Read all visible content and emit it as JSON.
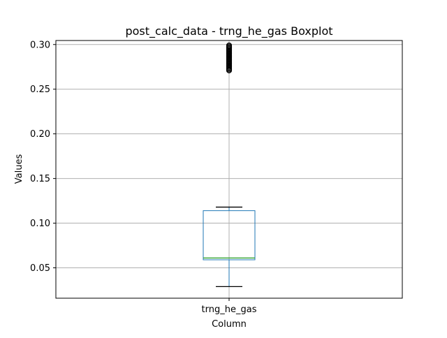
{
  "chart_data": {
    "type": "boxplot",
    "title": "post_calc_data - trng_he_gas Boxplot",
    "xlabel": "Column",
    "ylabel": "Values",
    "categories": [
      "trng_he_gas"
    ],
    "ylim": [
      0.016,
      0.3045
    ],
    "yticks": [
      0.05,
      0.1,
      0.15,
      0.2,
      0.25,
      0.3
    ],
    "ytick_labels": [
      "0.05",
      "0.10",
      "0.15",
      "0.20",
      "0.25",
      "0.30"
    ],
    "grid": true,
    "boxes": [
      {
        "name": "trng_he_gas",
        "whisker_low": 0.029,
        "q1": 0.059,
        "median": 0.061,
        "q3": 0.114,
        "whisker_high": 0.118,
        "outliers": [
          0.271,
          0.272,
          0.273,
          0.274,
          0.275,
          0.276,
          0.277,
          0.278,
          0.279,
          0.28,
          0.281,
          0.282,
          0.283,
          0.284,
          0.285,
          0.286,
          0.287,
          0.288,
          0.289,
          0.29,
          0.291,
          0.292,
          0.293,
          0.294,
          0.295,
          0.296,
          0.297,
          0.298,
          0.299
        ]
      }
    ],
    "colors": {
      "box": "#1f77b4",
      "median": "#2ca02c",
      "whisker": "#000000",
      "grid": "#b0b0b0",
      "outlier": "#000000"
    }
  }
}
